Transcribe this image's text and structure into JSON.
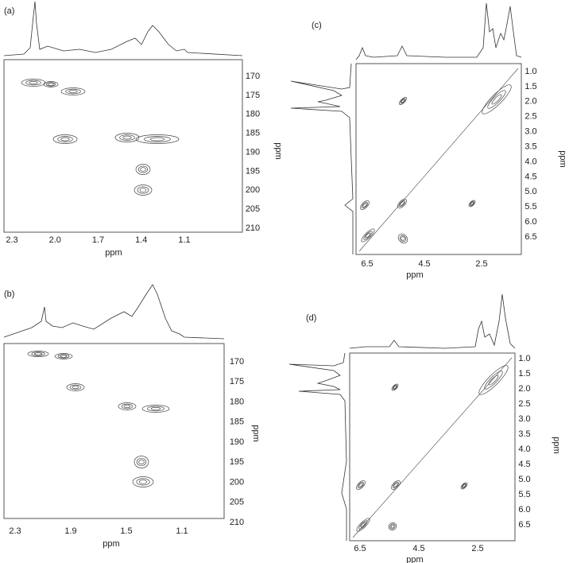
{
  "panels": [
    {
      "label": "(a)",
      "x_axis": {
        "label": "ppm",
        "ticks": [
          "2.3",
          "2.0",
          "1.7",
          "1.4",
          "1.1"
        ]
      },
      "y_axis": {
        "label": "ppm",
        "ticks": [
          "170",
          "175",
          "180",
          "185",
          "190",
          "195",
          "200",
          "205",
          "210"
        ]
      }
    },
    {
      "label": "(b)",
      "x_axis": {
        "label": "ppm",
        "ticks": [
          "2.3",
          "1.9",
          "1.5",
          "1.1"
        ]
      },
      "y_axis": {
        "label": "ppm",
        "ticks": [
          "170",
          "175",
          "180",
          "185",
          "190",
          "195",
          "200",
          "205",
          "210"
        ]
      }
    },
    {
      "label": "(c)",
      "x_axis": {
        "label": "ppm",
        "ticks": [
          "6.5",
          "4.5",
          "2.5"
        ]
      },
      "y_axis": {
        "label": "ppm",
        "ticks": [
          "1.0",
          "1.5",
          "2.0",
          "2.5",
          "3.0",
          "3.5",
          "4.0",
          "4.5",
          "5.0",
          "5.5",
          "6.0",
          "6.5"
        ]
      }
    },
    {
      "label": "(d)",
      "x_axis": {
        "label": "ppm",
        "ticks": [
          "6.5",
          "4.5",
          "2.5"
        ]
      },
      "y_axis": {
        "label": "ppm",
        "ticks": [
          "1.0",
          "1.5",
          "2.0",
          "2.5",
          "3.0",
          "3.5",
          "4.0",
          "4.5",
          "5.0",
          "5.5",
          "6.0",
          "6.5"
        ]
      }
    }
  ]
}
